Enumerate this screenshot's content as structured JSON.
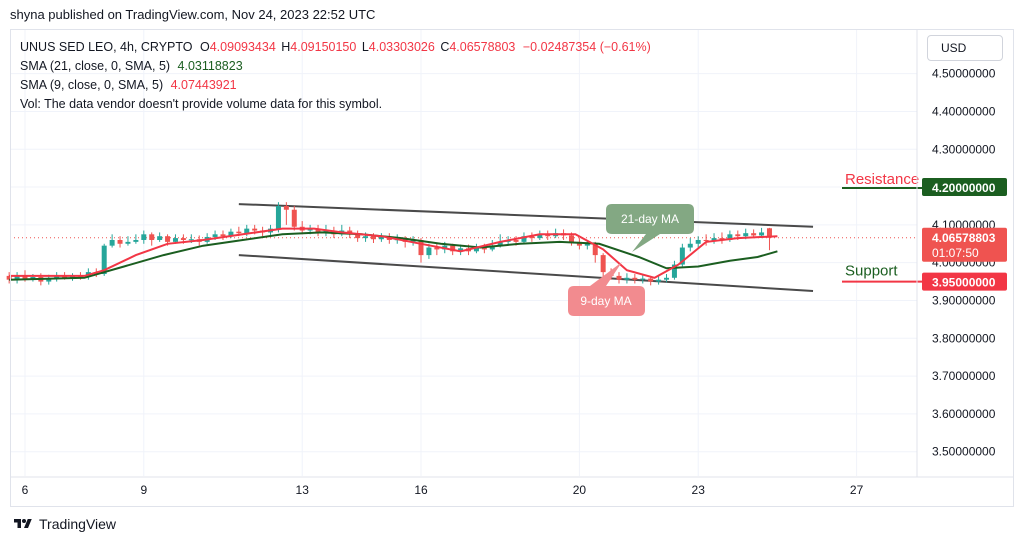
{
  "header": {
    "published": "shyna published on TradingView.com, Nov 24, 2023 22:52 UTC"
  },
  "legend": {
    "symbol": "UNUS SED LEO, 4h, CRYPTO",
    "open_label": "O",
    "open": "4.09093434",
    "high_label": "H",
    "high": "4.09150150",
    "low_label": "L",
    "low": "4.03303026",
    "close_label": "C",
    "close": "4.06578803",
    "change": "−0.02487354 (−0.61%)",
    "sma21_label": "SMA (21, close, 0, SMA, 5)",
    "sma21_value": "4.03118823",
    "sma9_label": "SMA (9, close, 0, SMA, 5)",
    "sma9_value": "4.07443921",
    "vol_text": "Vol: The data vendor doesn't provide volume data for this symbol."
  },
  "currency_button": "USD",
  "footer": {
    "brand": "TradingView"
  },
  "colors": {
    "up": "#26a69a",
    "down": "#ef5350",
    "sma9": "#f23645",
    "sma21": "#1b5e20",
    "channel": "#4a4a4a",
    "resistance": "#f23645",
    "support_label": "#1b5e20"
  },
  "chart_data": {
    "type": "candlestick",
    "y_ticks": [
      "4.50000000",
      "4.40000000",
      "4.30000000",
      "4.20000000",
      "4.10000000",
      "4.00000000",
      "3.90000000",
      "3.80000000",
      "3.70000000",
      "3.60000000",
      "3.50000000"
    ],
    "y_tick_values": [
      4.5,
      4.4,
      4.3,
      4.2,
      4.1,
      4.0,
      3.9,
      3.8,
      3.7,
      3.6,
      3.5
    ],
    "x_ticks": [
      "6",
      "9",
      "13",
      "16",
      "20",
      "23",
      "27"
    ],
    "x_tick_days": [
      6,
      9,
      13,
      16,
      20,
      23,
      27
    ],
    "ylim": [
      3.4,
      4.62
    ],
    "xlim": [
      5.6,
      28.2
    ],
    "last_price": "4.06578803",
    "countdown": "01:07:50",
    "annotations": {
      "resistance_label": "Resistance",
      "resistance_price": "4.20000000",
      "resistance_value": 4.2,
      "support_label": "Support",
      "support_price": "3.95000000",
      "support_value": 3.95,
      "ma21_callout": "21-day MA",
      "ma9_callout": "9-day MA"
    },
    "channel": {
      "upper": [
        [
          11.4,
          4.155
        ],
        [
          25.9,
          4.095
        ]
      ],
      "lower": [
        [
          11.4,
          4.02
        ],
        [
          25.9,
          3.925
        ]
      ]
    },
    "sma9": [
      [
        5.6,
        3.965
      ],
      [
        7.5,
        3.965
      ],
      [
        8.0,
        3.98
      ],
      [
        8.8,
        4.02
      ],
      [
        9.6,
        4.05
      ],
      [
        10.5,
        4.06
      ],
      [
        11.5,
        4.075
      ],
      [
        12.5,
        4.09
      ],
      [
        13.3,
        4.09
      ],
      [
        14.0,
        4.08
      ],
      [
        15.0,
        4.07
      ],
      [
        16.0,
        4.05
      ],
      [
        17.0,
        4.03
      ],
      [
        18.0,
        4.055
      ],
      [
        19.0,
        4.075
      ],
      [
        19.9,
        4.075
      ],
      [
        20.6,
        4.035
      ],
      [
        21.2,
        3.98
      ],
      [
        21.9,
        3.96
      ],
      [
        22.5,
        3.995
      ],
      [
        23.2,
        4.055
      ],
      [
        24.0,
        4.065
      ],
      [
        25.0,
        4.07
      ]
    ],
    "sma21": [
      [
        5.6,
        3.955
      ],
      [
        7.5,
        3.96
      ],
      [
        8.5,
        3.99
      ],
      [
        9.5,
        4.02
      ],
      [
        10.5,
        4.045
      ],
      [
        11.5,
        4.06
      ],
      [
        12.5,
        4.075
      ],
      [
        13.5,
        4.08
      ],
      [
        14.5,
        4.075
      ],
      [
        15.5,
        4.065
      ],
      [
        16.5,
        4.05
      ],
      [
        17.5,
        4.04
      ],
      [
        18.5,
        4.05
      ],
      [
        19.5,
        4.055
      ],
      [
        20.5,
        4.05
      ],
      [
        21.5,
        4.015
      ],
      [
        22.2,
        3.985
      ],
      [
        23.0,
        3.99
      ],
      [
        23.8,
        4.005
      ],
      [
        24.5,
        4.015
      ],
      [
        25.0,
        4.03
      ]
    ],
    "candles": [
      [
        5.6,
        3.965,
        3.955,
        3.975,
        3.945
      ],
      [
        5.8,
        3.955,
        3.965,
        3.975,
        3.945
      ],
      [
        6.0,
        3.965,
        3.958,
        3.98,
        3.95
      ],
      [
        6.2,
        3.958,
        3.962,
        3.97,
        3.95
      ],
      [
        6.4,
        3.962,
        3.95,
        3.972,
        3.94
      ],
      [
        6.6,
        3.95,
        3.958,
        3.968,
        3.942
      ],
      [
        6.8,
        3.958,
        3.965,
        3.975,
        3.95
      ],
      [
        7.0,
        3.965,
        3.96,
        3.975,
        3.955
      ],
      [
        7.2,
        3.96,
        3.965,
        3.972,
        3.952
      ],
      [
        7.4,
        3.965,
        3.962,
        3.975,
        3.955
      ],
      [
        7.6,
        3.962,
        3.975,
        3.985,
        3.955
      ],
      [
        7.8,
        3.975,
        3.97,
        3.985,
        3.962
      ],
      [
        8.0,
        3.97,
        4.045,
        4.05,
        3.965
      ],
      [
        8.2,
        4.045,
        4.06,
        4.075,
        4.04
      ],
      [
        8.4,
        4.06,
        4.05,
        4.07,
        4.04
      ],
      [
        8.6,
        4.05,
        4.055,
        4.07,
        4.045
      ],
      [
        8.8,
        4.055,
        4.06,
        4.075,
        4.05
      ],
      [
        9.0,
        4.06,
        4.075,
        4.085,
        4.05
      ],
      [
        9.2,
        4.075,
        4.06,
        4.08,
        4.045
      ],
      [
        9.4,
        4.06,
        4.07,
        4.08,
        4.055
      ],
      [
        9.6,
        4.07,
        4.055,
        4.075,
        4.045
      ],
      [
        9.8,
        4.055,
        4.065,
        4.075,
        4.05
      ],
      [
        10.0,
        4.065,
        4.06,
        4.075,
        4.05
      ],
      [
        10.2,
        4.06,
        4.062,
        4.075,
        4.052
      ],
      [
        10.4,
        4.062,
        4.055,
        4.072,
        4.045
      ],
      [
        10.6,
        4.055,
        4.068,
        4.078,
        4.05
      ],
      [
        10.8,
        4.068,
        4.075,
        4.085,
        4.06
      ],
      [
        11.0,
        4.075,
        4.07,
        4.085,
        4.06
      ],
      [
        11.2,
        4.07,
        4.082,
        4.09,
        4.065
      ],
      [
        11.4,
        4.082,
        4.078,
        4.095,
        4.07
      ],
      [
        11.6,
        4.078,
        4.09,
        4.1,
        4.07
      ],
      [
        11.8,
        4.09,
        4.085,
        4.1,
        4.075
      ],
      [
        12.0,
        4.085,
        4.08,
        4.095,
        4.07
      ],
      [
        12.2,
        4.08,
        4.09,
        4.1,
        4.07
      ],
      [
        12.4,
        4.09,
        4.15,
        4.16,
        4.08
      ],
      [
        12.6,
        4.15,
        4.14,
        4.16,
        4.1
      ],
      [
        12.8,
        4.14,
        4.095,
        4.15,
        4.085
      ],
      [
        13.0,
        4.095,
        4.085,
        4.11,
        4.075
      ],
      [
        13.2,
        4.085,
        4.09,
        4.1,
        4.075
      ],
      [
        13.4,
        4.09,
        4.08,
        4.1,
        4.07
      ],
      [
        13.6,
        4.08,
        4.085,
        4.1,
        4.07
      ],
      [
        13.8,
        4.085,
        4.075,
        4.095,
        4.065
      ],
      [
        14.0,
        4.075,
        4.085,
        4.1,
        4.07
      ],
      [
        14.2,
        4.085,
        4.075,
        4.095,
        4.065
      ],
      [
        14.4,
        4.075,
        4.065,
        4.085,
        4.055
      ],
      [
        14.6,
        4.065,
        4.07,
        4.08,
        4.055
      ],
      [
        14.8,
        4.07,
        4.062,
        4.078,
        4.052
      ],
      [
        15.0,
        4.062,
        4.068,
        4.078,
        4.055
      ],
      [
        15.2,
        4.068,
        4.06,
        4.078,
        4.05
      ],
      [
        15.4,
        4.06,
        4.062,
        4.075,
        4.05
      ],
      [
        15.6,
        4.062,
        4.055,
        4.07,
        4.04
      ],
      [
        15.8,
        4.055,
        4.06,
        4.07,
        4.045
      ],
      [
        16.0,
        4.06,
        4.02,
        4.065,
        4.0
      ],
      [
        16.2,
        4.02,
        4.04,
        4.05,
        4.01
      ],
      [
        16.4,
        4.04,
        4.035,
        4.05,
        4.02
      ],
      [
        16.6,
        4.035,
        4.045,
        4.055,
        4.025
      ],
      [
        16.8,
        4.045,
        4.03,
        4.05,
        4.02
      ],
      [
        17.0,
        4.03,
        4.038,
        4.048,
        4.02
      ],
      [
        17.2,
        4.038,
        4.03,
        4.048,
        4.02
      ],
      [
        17.4,
        4.03,
        4.04,
        4.05,
        4.025
      ],
      [
        17.6,
        4.04,
        4.035,
        4.05,
        4.025
      ],
      [
        17.8,
        4.035,
        4.045,
        4.06,
        4.03
      ],
      [
        18.0,
        4.045,
        4.055,
        4.075,
        4.04
      ],
      [
        18.2,
        4.055,
        4.06,
        4.07,
        4.045
      ],
      [
        18.4,
        4.06,
        4.055,
        4.07,
        4.045
      ],
      [
        18.6,
        4.055,
        4.07,
        4.08,
        4.05
      ],
      [
        18.8,
        4.07,
        4.065,
        4.08,
        4.055
      ],
      [
        19.0,
        4.065,
        4.075,
        4.085,
        4.06
      ],
      [
        19.2,
        4.075,
        4.07,
        4.085,
        4.06
      ],
      [
        19.4,
        4.07,
        4.078,
        4.09,
        4.065
      ],
      [
        19.6,
        4.078,
        4.072,
        4.088,
        4.06
      ],
      [
        19.8,
        4.072,
        4.055,
        4.08,
        4.045
      ],
      [
        20.0,
        4.055,
        4.045,
        4.065,
        4.035
      ],
      [
        20.2,
        4.045,
        4.05,
        4.06,
        4.035
      ],
      [
        20.4,
        4.05,
        4.02,
        4.055,
        4.0
      ],
      [
        20.6,
        4.02,
        3.975,
        4.025,
        3.96
      ],
      [
        20.8,
        3.975,
        3.965,
        3.985,
        3.955
      ],
      [
        21.0,
        3.965,
        3.955,
        3.975,
        3.945
      ],
      [
        21.2,
        3.955,
        3.96,
        3.972,
        3.945
      ],
      [
        21.4,
        3.96,
        3.955,
        3.97,
        3.945
      ],
      [
        21.6,
        3.955,
        3.958,
        3.968,
        3.945
      ],
      [
        21.8,
        3.958,
        3.95,
        3.965,
        3.94
      ],
      [
        22.0,
        3.95,
        3.955,
        3.965,
        3.942
      ],
      [
        22.2,
        3.955,
        3.96,
        3.97,
        3.948
      ],
      [
        22.4,
        3.96,
        3.995,
        4.005,
        3.955
      ],
      [
        22.6,
        3.995,
        4.04,
        4.05,
        3.99
      ],
      [
        22.8,
        4.04,
        4.05,
        4.065,
        4.03
      ],
      [
        23.0,
        4.05,
        4.06,
        4.07,
        4.04
      ],
      [
        23.2,
        4.06,
        4.058,
        4.075,
        4.045
      ],
      [
        23.4,
        4.058,
        4.065,
        4.078,
        4.05
      ],
      [
        23.6,
        4.065,
        4.06,
        4.08,
        4.05
      ],
      [
        23.8,
        4.06,
        4.075,
        4.085,
        4.055
      ],
      [
        24.0,
        4.075,
        4.07,
        4.085,
        4.06
      ],
      [
        24.2,
        4.07,
        4.078,
        4.09,
        4.062
      ],
      [
        24.4,
        4.078,
        4.072,
        4.088,
        4.065
      ],
      [
        24.6,
        4.072,
        4.08,
        4.092,
        4.065
      ],
      [
        24.8,
        4.091,
        4.066,
        4.092,
        4.033
      ]
    ]
  }
}
